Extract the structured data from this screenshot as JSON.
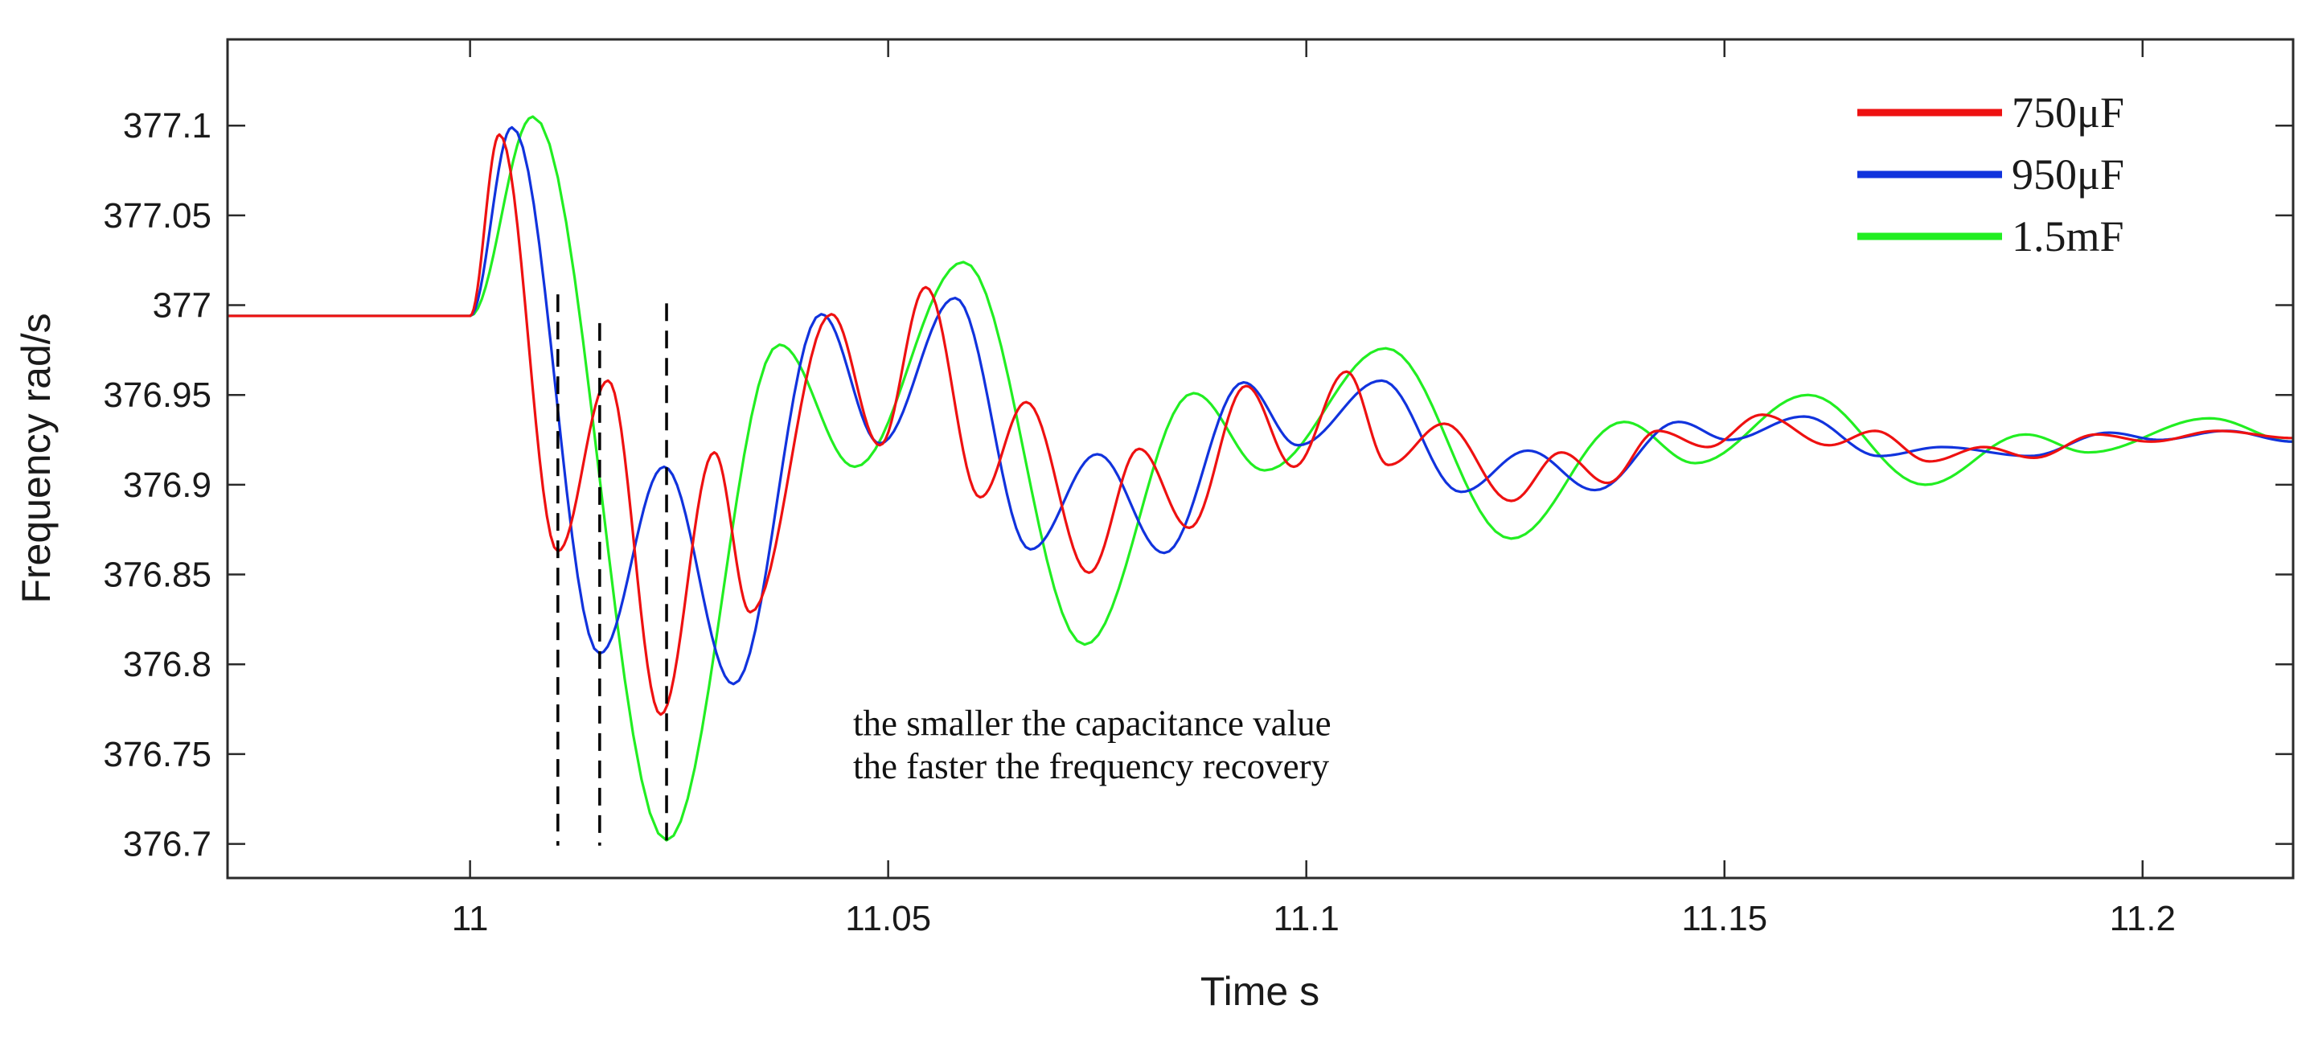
{
  "chart_data": {
    "type": "line",
    "xlabel": "Time s",
    "ylabel": "Frequency rad/s",
    "xlim": [
      10.971,
      11.218
    ],
    "ylim": [
      376.681,
      377.148
    ],
    "x_ticks": [
      11,
      11.05,
      11.1,
      11.15,
      11.2
    ],
    "x_tick_labels": [
      "11",
      "11.05",
      "11.1",
      "11.15",
      "11.2"
    ],
    "y_ticks": [
      376.7,
      376.75,
      376.8,
      376.85,
      376.9,
      376.95,
      377,
      377.05,
      377.1
    ],
    "y_tick_labels": [
      "376.7",
      "376.75",
      "376.8",
      "376.85",
      "376.9",
      "376.95",
      "377",
      "377.05",
      "377.1"
    ],
    "grid": false,
    "legend_position": "top-right",
    "baseline_value": 376.994,
    "step_time": 11.0,
    "series": [
      {
        "name": "750μF",
        "color": "#ee1111",
        "extrema": [
          [
            11.0035,
            377.095
          ],
          [
            11.0105,
            376.863
          ],
          [
            11.0165,
            376.958
          ],
          [
            11.0228,
            376.772
          ],
          [
            11.0292,
            376.918
          ],
          [
            11.0335,
            376.829
          ],
          [
            11.0432,
            376.995
          ],
          [
            11.049,
            376.922
          ],
          [
            11.0545,
            377.01
          ],
          [
            11.061,
            376.893
          ],
          [
            11.0665,
            376.946
          ],
          [
            11.074,
            376.851
          ],
          [
            11.08,
            376.92
          ],
          [
            11.086,
            376.876
          ],
          [
            11.0928,
            376.955
          ],
          [
            11.0985,
            376.91
          ],
          [
            11.1048,
            376.963
          ],
          [
            11.1098,
            376.911
          ],
          [
            11.1165,
            376.934
          ],
          [
            11.1245,
            376.891
          ],
          [
            11.1305,
            376.918
          ],
          [
            11.136,
            376.901
          ],
          [
            11.142,
            376.93
          ],
          [
            11.148,
            376.921
          ],
          [
            11.1545,
            376.939
          ],
          [
            11.1625,
            376.922
          ],
          [
            11.168,
            376.93
          ],
          [
            11.1745,
            376.913
          ],
          [
            11.181,
            376.921
          ],
          [
            11.187,
            376.915
          ],
          [
            11.1945,
            376.928
          ],
          [
            11.201,
            376.924
          ],
          [
            11.209,
            376.93
          ],
          [
            11.218,
            376.926
          ]
        ]
      },
      {
        "name": "950μF",
        "color": "#1133dd",
        "extrema": [
          [
            11.005,
            377.099
          ],
          [
            11.0155,
            376.806
          ],
          [
            11.0232,
            376.91
          ],
          [
            11.0315,
            376.789
          ],
          [
            11.042,
            376.995
          ],
          [
            11.049,
            376.923
          ],
          [
            11.058,
            377.004
          ],
          [
            11.067,
            376.864
          ],
          [
            11.075,
            376.917
          ],
          [
            11.083,
            376.862
          ],
          [
            11.0925,
            376.957
          ],
          [
            11.099,
            376.922
          ],
          [
            11.109,
            376.958
          ],
          [
            11.1185,
            376.896
          ],
          [
            11.1265,
            376.919
          ],
          [
            11.1345,
            376.897
          ],
          [
            11.1445,
            376.935
          ],
          [
            11.1505,
            376.925
          ],
          [
            11.1595,
            376.938
          ],
          [
            11.1685,
            376.916
          ],
          [
            11.176,
            376.921
          ],
          [
            11.1865,
            376.916
          ],
          [
            11.196,
            376.929
          ],
          [
            11.202,
            376.925
          ],
          [
            11.21,
            376.93
          ],
          [
            11.218,
            376.924
          ]
        ]
      },
      {
        "name": "1.5mF",
        "color": "#22ee22",
        "extrema": [
          [
            11.0075,
            377.105
          ],
          [
            11.0235,
            376.702
          ],
          [
            11.037,
            376.978
          ],
          [
            11.046,
            376.91
          ],
          [
            11.059,
            377.024
          ],
          [
            11.0735,
            376.811
          ],
          [
            11.0865,
            376.951
          ],
          [
            11.095,
            376.908
          ],
          [
            11.1095,
            376.976
          ],
          [
            11.1245,
            376.87
          ],
          [
            11.138,
            376.935
          ],
          [
            11.1465,
            376.912
          ],
          [
            11.16,
            376.95
          ],
          [
            11.174,
            376.9
          ],
          [
            11.186,
            376.928
          ],
          [
            11.1935,
            376.918
          ],
          [
            11.208,
            376.937
          ],
          [
            11.218,
            376.924
          ]
        ]
      }
    ],
    "markers": [
      {
        "x": 11.0105,
        "y_top": 377.006,
        "y_bottom": 376.699
      },
      {
        "x": 11.0155,
        "y_top": 376.99,
        "y_bottom": 376.699
      },
      {
        "x": 11.0235,
        "y_top": 377.001,
        "y_bottom": 376.699
      }
    ],
    "annotations": [
      {
        "text": "the smaller the capacitance value",
        "x": 11.0458,
        "y": 376.7605
      },
      {
        "text": "the faster the frequency recovery",
        "x": 11.0458,
        "y": 376.7365
      }
    ]
  }
}
